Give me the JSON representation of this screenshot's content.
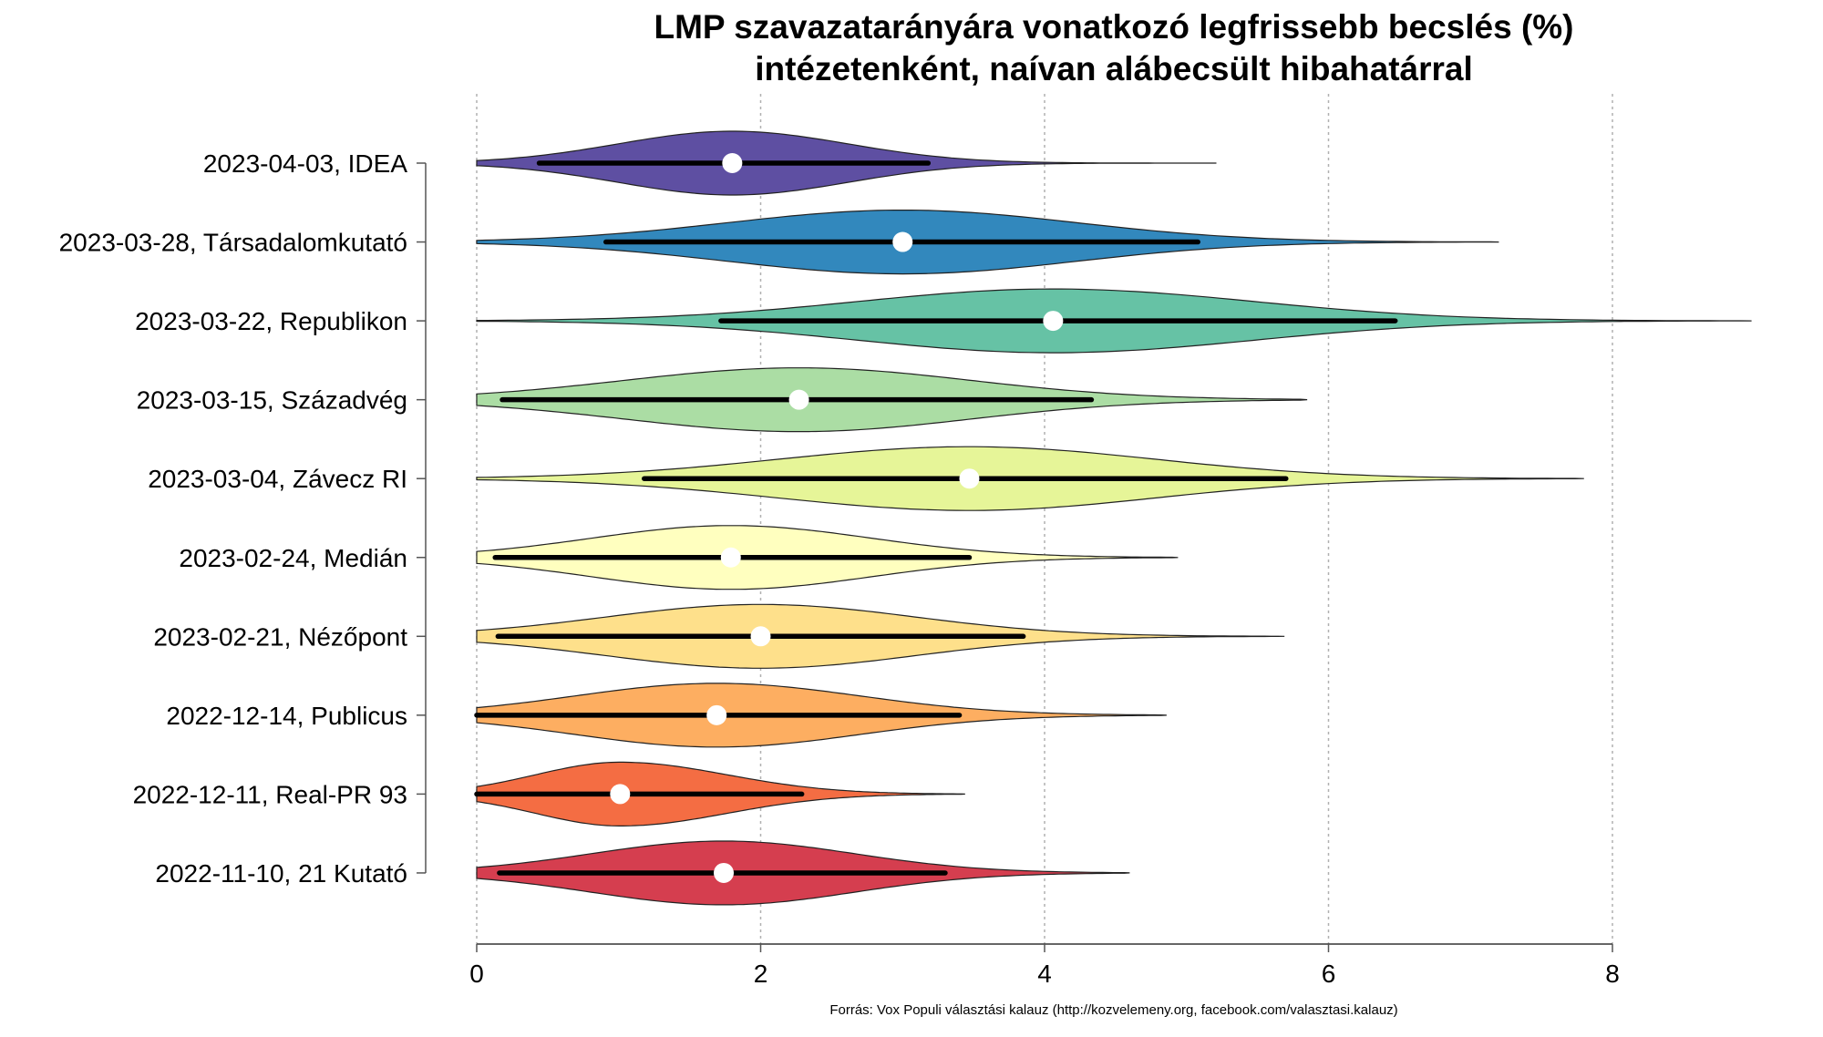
{
  "chart_data": {
    "type": "violin",
    "title": "LMP szavazatarányára vonatkozó legfrissebb becslés (%)",
    "subtitle": "intézetenként, naívan alábecsült hibahatárral",
    "xlabel": "",
    "ylabel": "",
    "xlim": [
      0,
      8
    ],
    "xticks": [
      "0",
      "2",
      "4",
      "6",
      "8"
    ],
    "grid": "vertical dotted at x ticks",
    "source": "Forrás: Vox Populi választási kalauz (http://kozvelemeny.org, facebook.com/valasztasi.kalauz)",
    "series": [
      {
        "label": "2023-04-03, IDEA",
        "estimate": 1.8,
        "ci_low": 0.44,
        "ci_high": 3.18,
        "min": 0.0,
        "max": 5.21,
        "color": "#5E4FA2"
      },
      {
        "label": "2023-03-28, Társadalomkutató",
        "estimate": 3.0,
        "ci_low": 0.91,
        "ci_high": 5.08,
        "min": 0.0,
        "max": 7.2,
        "color": "#3288BD"
      },
      {
        "label": "2023-03-22, Republikon",
        "estimate": 4.06,
        "ci_low": 1.72,
        "ci_high": 6.47,
        "min": 0.0,
        "max": 8.98,
        "color": "#66C2A5"
      },
      {
        "label": "2023-03-15, Századvég",
        "estimate": 2.27,
        "ci_low": 0.18,
        "ci_high": 4.33,
        "min": 0.0,
        "max": 5.85,
        "color": "#ABDDA4"
      },
      {
        "label": "2023-03-04, Závecz RI",
        "estimate": 3.47,
        "ci_low": 1.18,
        "ci_high": 5.7,
        "min": 0.0,
        "max": 7.8,
        "color": "#E6F598"
      },
      {
        "label": "2023-02-24, Medián",
        "estimate": 1.79,
        "ci_low": 0.13,
        "ci_high": 3.47,
        "min": 0.0,
        "max": 4.94,
        "color": "#FFFFBF"
      },
      {
        "label": "2023-02-21, Nézőpont",
        "estimate": 2.0,
        "ci_low": 0.15,
        "ci_high": 3.85,
        "min": 0.0,
        "max": 5.69,
        "color": "#FEE08B"
      },
      {
        "label": "2022-12-14, Publicus",
        "estimate": 1.69,
        "ci_low": 0.0,
        "ci_high": 3.4,
        "min": 0.0,
        "max": 4.86,
        "color": "#FDAE61"
      },
      {
        "label": "2022-12-11, Real-PR 93",
        "estimate": 1.01,
        "ci_low": 0.0,
        "ci_high": 2.29,
        "min": 0.0,
        "max": 3.44,
        "color": "#F46D43"
      },
      {
        "label": "2022-11-10, 21 Kutató",
        "estimate": 1.74,
        "ci_low": 0.16,
        "ci_high": 3.3,
        "min": 0.0,
        "max": 4.6,
        "color": "#D53E4F"
      }
    ]
  }
}
